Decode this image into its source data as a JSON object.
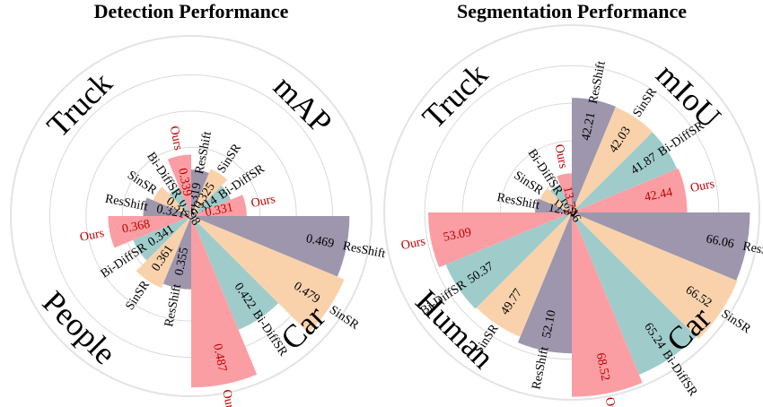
{
  "colors": {
    "ResShift": "#9d96ad",
    "SinSR": "#f9d2ac",
    "Bi-DiffSR": "#9fcccb",
    "Ours": "#fb9ea4",
    "ours_text": "#c00000",
    "text": "#000000"
  },
  "chart_data": [
    {
      "type": "polar-bar",
      "title": "Detection Performance",
      "series_order": [
        "ResShift",
        "SinSR",
        "Bi-DiffSR",
        "Ours"
      ],
      "rlim": [
        0.26,
        0.5
      ],
      "categories": [
        {
          "name": "mAP",
          "values": {
            "ResShift": 0.319,
            "SinSR": 0.325,
            "Bi-DiffSR": 0.314,
            "Ours": 0.331
          },
          "labels": {
            "ResShift": "0.319",
            "SinSR": "0.325",
            "Bi-DiffSR": "0.314",
            "Ours": "0.331"
          }
        },
        {
          "name": "Car",
          "values": {
            "ResShift": 0.469,
            "SinSR": 0.479,
            "Bi-DiffSR": 0.422,
            "Ours": 0.487
          },
          "labels": {
            "ResShift": "0.469",
            "SinSR": "0.479",
            "Bi-DiffSR": "0.422",
            "Ours": "0.487"
          }
        },
        {
          "name": "People",
          "values": {
            "ResShift": 0.355,
            "SinSR": 0.361,
            "Bi-DiffSR": 0.341,
            "Ours": 0.368
          },
          "labels": {
            "ResShift": "0.355",
            "SinSR": "0.361",
            "Bi-DiffSR": "0.341",
            "Ours": "0.368"
          }
        },
        {
          "name": "Truck",
          "values": {
            "ResShift": 0.321,
            "SinSR": 0.312,
            "Bi-DiffSR": 0.298,
            "Ours": 0.339
          },
          "labels": {
            "ResShift": "0.321",
            "SinSR": "0.312",
            "Bi-DiffSR": "0.298",
            "Ours": "0.339"
          }
        }
      ]
    },
    {
      "type": "polar-bar",
      "title": "Segmentation Performance",
      "series_order": [
        "ResShift",
        "SinSR",
        "Bi-DiffSR",
        "Ours"
      ],
      "rlim": [
        0,
        70
      ],
      "categories": [
        {
          "name": "mIoU",
          "values": {
            "ResShift": 42.21,
            "SinSR": 42.03,
            "Bi-DiffSR": 41.87,
            "Ours": 42.44
          },
          "labels": {
            "ResShift": "42.21",
            "SinSR": "42.03",
            "Bi-DiffSR": "41.87",
            "Ours": "42.44"
          }
        },
        {
          "name": "Car",
          "values": {
            "ResShift": 66.06,
            "SinSR": 66.52,
            "Bi-DiffSR": 65.24,
            "Ours": 68.52
          },
          "labels": {
            "ResShift": "66.06",
            "SinSR": "66.52",
            "Bi-DiffSR": "65.24",
            "Ours": "68.52"
          }
        },
        {
          "name": "Human",
          "values": {
            "ResShift": 52.1,
            "SinSR": 49.77,
            "Bi-DiffSR": 50.37,
            "Ours": 53.09
          },
          "labels": {
            "ResShift": "52.10",
            "SinSR": "49.77",
            "Bi-DiffSR": "50.37",
            "Ours": "53.09"
          }
        },
        {
          "name": "Truck",
          "values": {
            "ResShift": 12.8,
            "SinSR": 11.91,
            "Bi-DiffSR": 10.46,
            "Ours": 13.75
          },
          "labels": {
            "ResShift": "12.80",
            "SinSR": "11.91",
            "Bi-DiffSR": "10.46",
            "Ours": "13.75"
          }
        }
      ]
    }
  ]
}
